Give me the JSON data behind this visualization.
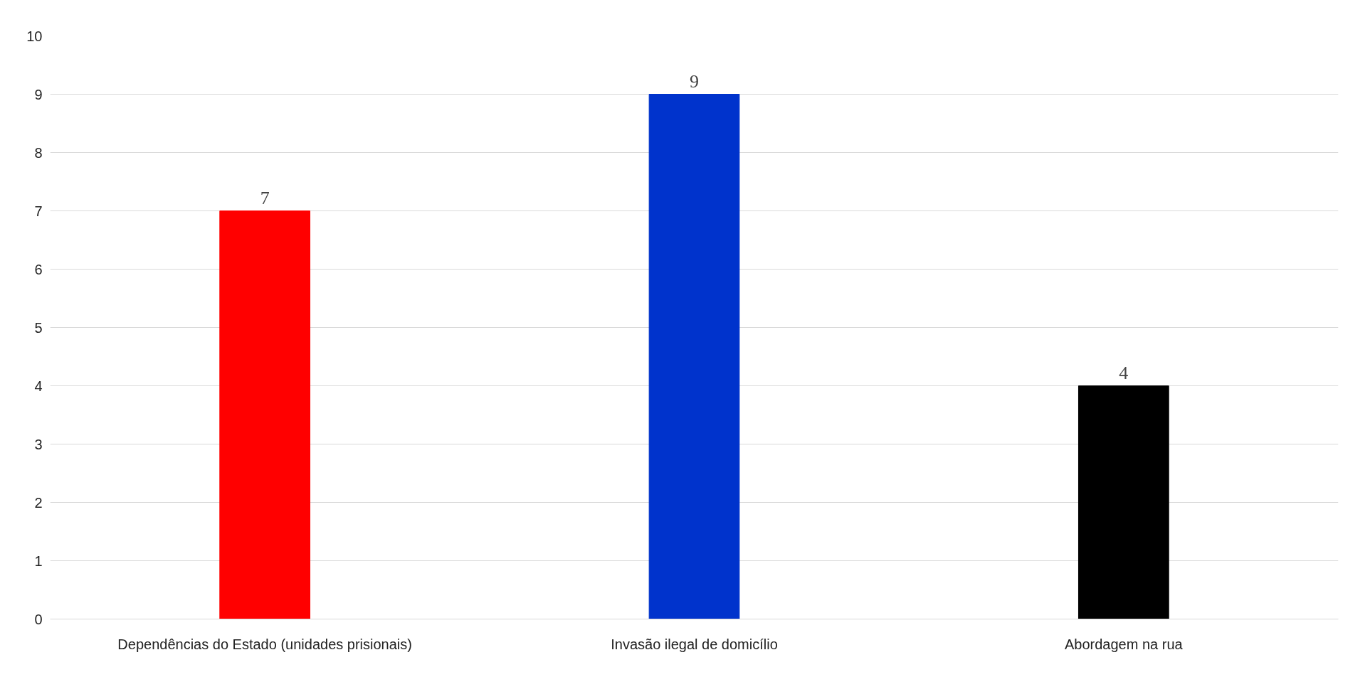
{
  "chart_data": {
    "type": "bar",
    "categories": [
      "Dependências do Estado (unidades prisionais)",
      "Invasão ilegal de domicílio",
      "Abordagem na rua"
    ],
    "values": [
      7,
      9,
      4
    ],
    "colors": [
      "#ff0000",
      "#0033cc",
      "#000000"
    ],
    "ylim": [
      0,
      10
    ],
    "yticks": [
      0,
      1,
      2,
      3,
      4,
      5,
      6,
      7,
      8,
      9,
      10
    ],
    "grid": "y",
    "data_labels": true
  }
}
